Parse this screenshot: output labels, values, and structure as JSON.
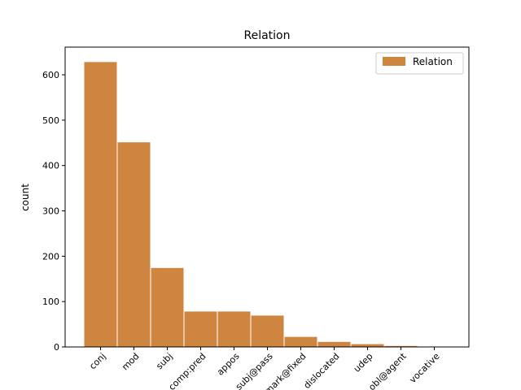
{
  "chart_data": {
    "type": "bar",
    "title": "Relation",
    "y_label": "count",
    "categories": [
      "conj",
      "mod",
      "subj",
      "comp:pred",
      "appos",
      "subj@pass",
      "mark@fixed",
      "dislocated",
      "udep",
      "obl@agent",
      "vocative"
    ],
    "series": [
      {
        "name": "Relation",
        "color": "#cd853f",
        "values": [
          629,
          452,
          175,
          79,
          79,
          70,
          23,
          12,
          7,
          3,
          1
        ]
      }
    ],
    "ylim": [
      0,
      661
    ],
    "yticks": [
      0,
      100,
      200,
      300,
      400,
      500,
      600
    ],
    "legend": "upper right"
  }
}
